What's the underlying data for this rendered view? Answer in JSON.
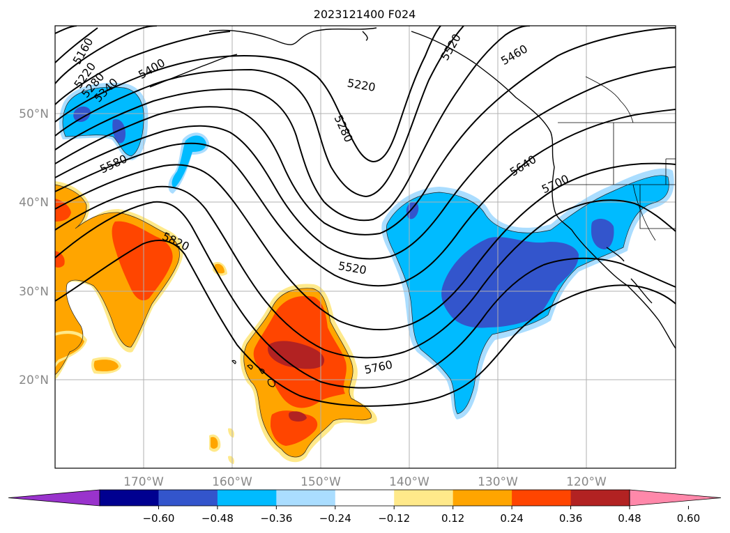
{
  "title": "2023121400 F024",
  "map": {
    "lat_labels": [
      "50°N",
      "40°N",
      "30°N",
      "20°N"
    ],
    "lon_labels": [
      "170°W",
      "160°W",
      "150°W",
      "140°W",
      "130°W",
      "120°W"
    ],
    "contour_labels": [
      "5160",
      "5220",
      "5280",
      "5340",
      "5400",
      "5220",
      "5280",
      "5460",
      "5520",
      "5580",
      "5640",
      "5700",
      "5760",
      "5820",
      "5520"
    ]
  },
  "colorbar": {
    "ticks": [
      "−0.60",
      "−0.48",
      "−0.36",
      "−0.24",
      "−0.12",
      "0.12",
      "0.24",
      "0.36",
      "0.48",
      "0.60"
    ],
    "colors": [
      "#9933cc",
      "#000090",
      "#3355cc",
      "#00bbff",
      "#aaddff",
      "#ffffff",
      "#ffe98a",
      "#ffa500",
      "#ff4500",
      "#b22222",
      "#ff88aa"
    ]
  }
}
